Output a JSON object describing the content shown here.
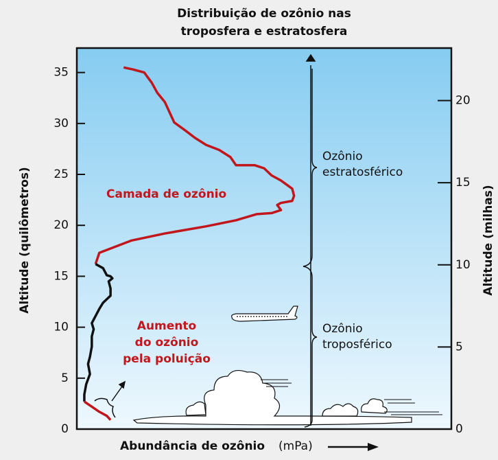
{
  "chart_data": {
    "type": "line",
    "title": [
      "Distribuição de ozônio nas",
      "troposfera e estratosfera"
    ],
    "ylabel": "Altitude (quilômetros)",
    "y2label": "Altitude (milhas)",
    "xlabel": "Abundância de ozônio",
    "xlabel_unit": "(mPa)",
    "annotations": {
      "layer": "Camada de ozônio",
      "pollution": [
        "Aumento",
        "do ozônio",
        "pela poluição"
      ],
      "strat": [
        "Ozônio",
        "estratosférico"
      ],
      "trop": [
        "Ozônio",
        "troposférico"
      ]
    },
    "xlim": [
      0,
      20
    ],
    "ylim": [
      0,
      37.4
    ],
    "yticks": [
      0,
      5,
      10,
      15,
      20,
      25,
      30,
      35
    ],
    "y2lim": [
      0,
      23.2
    ],
    "y2ticks": [
      0,
      5,
      10,
      15,
      20
    ],
    "grid": false,
    "series": [
      {
        "color": "#c0161c",
        "x": [
          2.5,
          3.0,
          3.6,
          3.8,
          4.0,
          4.3,
          4.7,
          4.9,
          5.2,
          5.8,
          6.3,
          6.9,
          7.6,
          8.2,
          8.5,
          9.5,
          10.0,
          10.4,
          10.9,
          11.5,
          11.6,
          11.5,
          10.9,
          10.7,
          10.9,
          10.4,
          9.6,
          8.5,
          6.9,
          4.7,
          2.9,
          1.2,
          1.0
        ],
        "values": [
          35.5,
          35.3,
          35.0,
          34.5,
          34.0,
          33.0,
          32.1,
          31.3,
          30.1,
          29.3,
          28.6,
          27.9,
          27.4,
          26.7,
          25.9,
          25.9,
          25.6,
          24.9,
          24.4,
          23.6,
          22.9,
          22.4,
          22.2,
          22.0,
          21.5,
          21.2,
          21.1,
          20.5,
          19.9,
          19.2,
          18.5,
          17.3,
          16.2
        ]
      },
      {
        "color": "#111111",
        "x": [
          1.0,
          1.4,
          1.6,
          1.8,
          1.9,
          1.7,
          1.8,
          1.8,
          1.4,
          1.2,
          1.0,
          0.8,
          0.9,
          0.8,
          0.8,
          0.7,
          0.6,
          0.7,
          0.5,
          0.4,
          0.4
        ],
        "values": [
          16.2,
          15.8,
          15.1,
          15.0,
          14.8,
          14.5,
          13.8,
          13.1,
          12.4,
          11.8,
          11.1,
          10.4,
          9.8,
          9.1,
          8.1,
          7.1,
          6.4,
          5.4,
          4.4,
          3.4,
          2.7
        ]
      },
      {
        "color": "#c0161c",
        "x": [
          0.4,
          0.8,
          1.2,
          1.6,
          1.8
        ],
        "values": [
          2.7,
          2.2,
          1.7,
          1.3,
          0.9
        ]
      }
    ]
  }
}
